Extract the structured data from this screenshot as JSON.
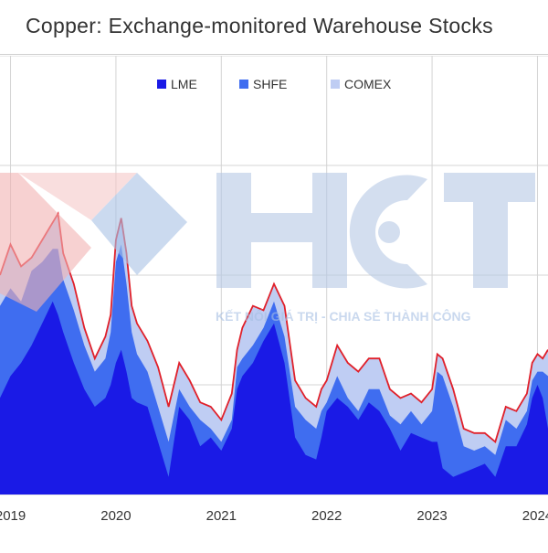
{
  "title": "Copper: Exchange-monitored Warehouse Stocks",
  "watermark": {
    "logo_text": "HCT",
    "slogan": "KẾT NỐI GIÁ TRỊ - CHIA SẺ THÀNH CÔNG"
  },
  "colors": {
    "lme": "#1a1ae6",
    "shfe": "#3f6df0",
    "comex": "#bfcdf3",
    "total_line": "#e0202a",
    "grid": "#d4d4d4"
  },
  "chart_data": {
    "type": "area",
    "stacked": true,
    "title": "Copper: Exchange-monitored Warehouse Stocks",
    "legend_position": "top-center",
    "grid": true,
    "x_tick_labels": [
      "2019",
      "2020",
      "2021",
      "2022",
      "2023",
      "2024"
    ],
    "x_tick_values": [
      2019,
      2020,
      2021,
      2022,
      2023,
      2024
    ],
    "xlim": [
      2018.9,
      2024.1
    ],
    "ylim": [
      0,
      100
    ],
    "y_units": "relative (no y-axis labels shown)",
    "x": [
      2018.9,
      2019.0,
      2019.1,
      2019.2,
      2019.3,
      2019.4,
      2019.45,
      2019.5,
      2019.6,
      2019.7,
      2019.8,
      2019.9,
      2019.95,
      2020.0,
      2020.05,
      2020.1,
      2020.15,
      2020.2,
      2020.3,
      2020.4,
      2020.5,
      2020.6,
      2020.7,
      2020.8,
      2020.9,
      2021.0,
      2021.1,
      2021.15,
      2021.2,
      2021.3,
      2021.4,
      2021.5,
      2021.6,
      2021.7,
      2021.8,
      2021.9,
      2021.95,
      2022.0,
      2022.1,
      2022.2,
      2022.3,
      2022.4,
      2022.5,
      2022.6,
      2022.7,
      2022.8,
      2022.9,
      2023.0,
      2023.05,
      2023.1,
      2023.2,
      2023.3,
      2023.4,
      2023.5,
      2023.6,
      2023.7,
      2023.8,
      2023.9,
      2023.95,
      2024.0,
      2024.05,
      2024.1
    ],
    "series": [
      {
        "name": "LME",
        "values": [
          22,
          27,
          30,
          34,
          39,
          44,
          41,
          37,
          30,
          24,
          20,
          22,
          25,
          30,
          33,
          28,
          22,
          21,
          20,
          12,
          4,
          20,
          17,
          11,
          13,
          10,
          15,
          24,
          27,
          30,
          35,
          39,
          30,
          13,
          9,
          8,
          13,
          19,
          22,
          20,
          17,
          21,
          19,
          15,
          10,
          14,
          13,
          12,
          12,
          6,
          4,
          5,
          6,
          7,
          4,
          11,
          11,
          16,
          22,
          25,
          22,
          15
        ]
      },
      {
        "name": "SHFE",
        "values": [
          21,
          20,
          14,
          17,
          14,
          12,
          15,
          12,
          12,
          10,
          8,
          9,
          12,
          23,
          24,
          20,
          15,
          11,
          8,
          8,
          8,
          4,
          3,
          6,
          2,
          2,
          2,
          5,
          4,
          4,
          3,
          5,
          6,
          7,
          8,
          7,
          6,
          2,
          5,
          2,
          2,
          3,
          5,
          3,
          6,
          5,
          3,
          7,
          16,
          21,
          16,
          6,
          4,
          4,
          5,
          6,
          4,
          3,
          4,
          3,
          6,
          12
        ]
      },
      {
        "name": "COMEX",
        "values": [
          7,
          10,
          8,
          3,
          5,
          6,
          8,
          6,
          6,
          4,
          3,
          5,
          4,
          5,
          6,
          7,
          6,
          7,
          7,
          9,
          8,
          6,
          6,
          4,
          5,
          5,
          6,
          4,
          7,
          9,
          4,
          4,
          7,
          6,
          5,
          5,
          5,
          5,
          7,
          8,
          9,
          7,
          7,
          6,
          6,
          4,
          5,
          5,
          4,
          4,
          4,
          4,
          4,
          3,
          3,
          3,
          4,
          4,
          4,
          4,
          3,
          6
        ]
      }
    ],
    "total_line_note": "red line traces the stacked total"
  }
}
